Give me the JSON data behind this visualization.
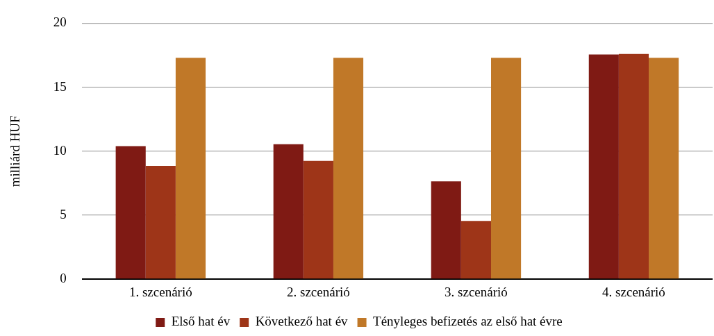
{
  "chart_data": {
    "type": "bar",
    "ylabel": "milliárd HUF",
    "categories": [
      "1. szcenárió",
      "2. szcenárió",
      "3. szcenárió",
      "4. szcenárió"
    ],
    "series": [
      {
        "name": "Első hat év",
        "color": "#7f1a14",
        "values": [
          10.4,
          10.55,
          7.65,
          17.55
        ]
      },
      {
        "name": "Következő hat év",
        "color": "#9e3518",
        "values": [
          8.85,
          9.25,
          4.55,
          17.6
        ]
      },
      {
        "name": "Tényleges befizetés az első hat évre",
        "color": "#c07828",
        "values": [
          17.3,
          17.3,
          17.3,
          17.3
        ]
      }
    ],
    "ylim": [
      0,
      20
    ],
    "yticks": [
      0,
      5,
      10,
      15,
      20
    ],
    "grid": "y",
    "legend": "bottom"
  }
}
